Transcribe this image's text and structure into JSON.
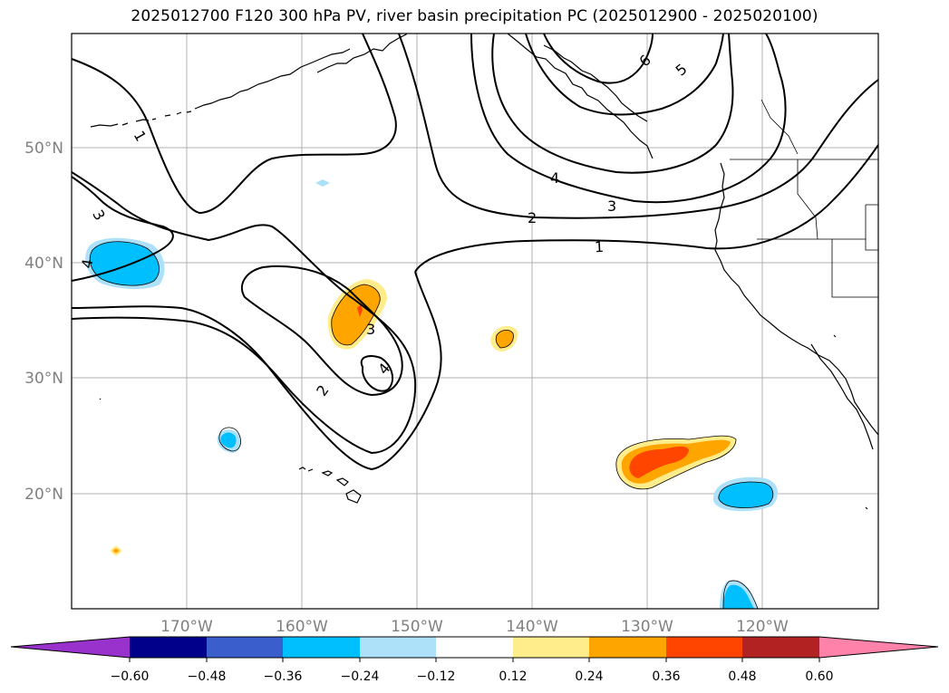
{
  "title": "2025012700 F120 300 hPa PV, river basin precipitation PC (2025012900 - 2025020100)",
  "map": {
    "lat_labels": [
      "50°N",
      "40°N",
      "30°N",
      "20°N"
    ],
    "lon_labels": [
      "170°W",
      "160°W",
      "150°W",
      "140°W",
      "130°W",
      "120°W"
    ],
    "pv_contour_labels": [
      "1",
      "1",
      "2",
      "2",
      "3",
      "3",
      "3",
      "4",
      "4",
      "4",
      "5",
      "6"
    ]
  },
  "colorbar": {
    "tick_labels": [
      "−0.60",
      "−0.48",
      "−0.36",
      "−0.24",
      "−0.12",
      "0.12",
      "0.24",
      "0.36",
      "0.48",
      "0.60"
    ],
    "colors": [
      "#9932CC",
      "#00008B",
      "#3A5FCD",
      "#00BFFF",
      "#ADE1FA",
      "#FFFFFF",
      "#FFEC8B",
      "#FFA500",
      "#FF4500",
      "#B22222",
      "#FF82AB"
    ]
  }
}
